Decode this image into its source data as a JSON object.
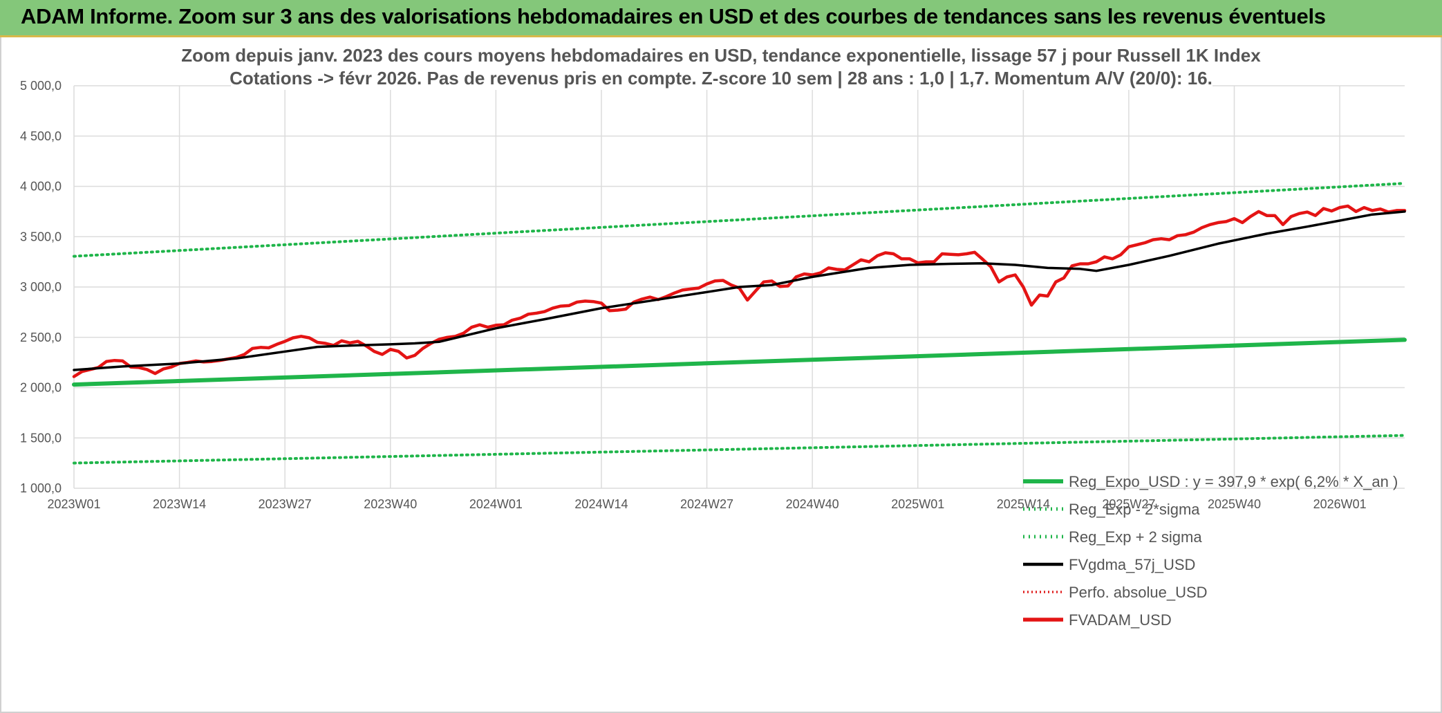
{
  "banner": {
    "title": "ADAM Informe. Zoom sur 3 ans des valorisations hebdomadaires en USD et des courbes de tendances sans les revenus éventuels"
  },
  "colors": {
    "banner_bg": "#84c77a",
    "trend": "#1fb54a",
    "sigma": "#1fb54a",
    "smooth": "#000000",
    "absolute": "#e02020",
    "adam": "#e41414",
    "grid": "#dcdcdc"
  },
  "chart_data": {
    "type": "line",
    "title_lines": [
      "Zoom depuis janv. 2023 des cours moyens hebdomadaires en USD, tendance exponentielle, lissage 57 j pour Russell 1K Index",
      "Cotations -> févr 2026. Pas de revenus pris en compte. Z-score 10 sem | 28 ans : 1,0 | 1,7. Momentum A/V (20/0): 16."
    ],
    "x_tick_labels": [
      "2023W01",
      "2023W14",
      "2023W27",
      "2023W40",
      "2024W01",
      "2024W14",
      "2024W27",
      "2024W40",
      "2025W01",
      "2025W14",
      "2025W27",
      "2025W40",
      "2026W01"
    ],
    "y_tick_labels": [
      "1 000,0",
      "1 500,0",
      "2 000,0",
      "2 500,0",
      "3 000,0",
      "3 500,0",
      "4 000,0",
      "4 500,0",
      "5 000,0"
    ],
    "ylim": [
      1000,
      5000
    ],
    "y_step": 500,
    "x_start_week_index": 0,
    "x_end_week_index": 164,
    "week_tick_step": 13,
    "grid": true,
    "legend_position": "bottom-right",
    "series": [
      {
        "name": "Reg_Expo_USD : y = 397,9 * exp( 6,2% *  X_an )",
        "style": "solid-thick",
        "points": [
          [
            0,
            2030
          ],
          [
            164,
            2475
          ]
        ]
      },
      {
        "name": "Reg_Exp - 2*sigma",
        "style": "dotted",
        "points": [
          [
            0,
            1250
          ],
          [
            164,
            1525
          ]
        ]
      },
      {
        "name": "Reg_Exp + 2 sigma",
        "style": "dotted",
        "points": [
          [
            0,
            3305
          ],
          [
            164,
            4030
          ]
        ]
      },
      {
        "name": "FVgdma_57j_USD",
        "style": "solid",
        "points": [
          [
            0,
            2175
          ],
          [
            6,
            2210
          ],
          [
            13,
            2240
          ],
          [
            20,
            2290
          ],
          [
            27,
            2370
          ],
          [
            30,
            2405
          ],
          [
            33,
            2415
          ],
          [
            39,
            2430
          ],
          [
            42,
            2440
          ],
          [
            45,
            2455
          ],
          [
            52,
            2590
          ],
          [
            58,
            2680
          ],
          [
            65,
            2790
          ],
          [
            70,
            2850
          ],
          [
            78,
            2950
          ],
          [
            82,
            3000
          ],
          [
            86,
            3020
          ],
          [
            91,
            3100
          ],
          [
            98,
            3190
          ],
          [
            103,
            3220
          ],
          [
            108,
            3230
          ],
          [
            112,
            3235
          ],
          [
            116,
            3220
          ],
          [
            120,
            3190
          ],
          [
            124,
            3180
          ],
          [
            126,
            3160
          ],
          [
            130,
            3220
          ],
          [
            135,
            3310
          ],
          [
            141,
            3430
          ],
          [
            147,
            3530
          ],
          [
            152,
            3600
          ],
          [
            156,
            3660
          ],
          [
            160,
            3720
          ],
          [
            164,
            3750
          ]
        ]
      },
      {
        "name": "Perfo. absolue_USD",
        "style": "dotted-red",
        "points": []
      },
      {
        "name": "FVADAM_USD",
        "style": "solid-thick",
        "points": [
          [
            0,
            2110
          ],
          [
            1,
            2160
          ],
          [
            2,
            2180
          ],
          [
            3,
            2200
          ],
          [
            4,
            2260
          ],
          [
            5,
            2270
          ],
          [
            6,
            2265
          ],
          [
            7,
            2205
          ],
          [
            8,
            2200
          ],
          [
            9,
            2180
          ],
          [
            10,
            2140
          ],
          [
            11,
            2185
          ],
          [
            12,
            2205
          ],
          [
            13,
            2240
          ],
          [
            14,
            2250
          ],
          [
            15,
            2265
          ],
          [
            16,
            2255
          ],
          [
            17,
            2260
          ],
          [
            18,
            2270
          ],
          [
            19,
            2285
          ],
          [
            20,
            2300
          ],
          [
            21,
            2330
          ],
          [
            22,
            2390
          ],
          [
            23,
            2400
          ],
          [
            24,
            2395
          ],
          [
            25,
            2430
          ],
          [
            26,
            2460
          ],
          [
            27,
            2495
          ],
          [
            28,
            2510
          ],
          [
            29,
            2495
          ],
          [
            30,
            2450
          ],
          [
            31,
            2440
          ],
          [
            32,
            2420
          ],
          [
            33,
            2465
          ],
          [
            34,
            2445
          ],
          [
            35,
            2460
          ],
          [
            36,
            2415
          ],
          [
            37,
            2360
          ],
          [
            38,
            2330
          ],
          [
            39,
            2380
          ],
          [
            40,
            2360
          ],
          [
            41,
            2295
          ],
          [
            42,
            2320
          ],
          [
            43,
            2390
          ],
          [
            44,
            2440
          ],
          [
            45,
            2480
          ],
          [
            46,
            2500
          ],
          [
            47,
            2510
          ],
          [
            48,
            2540
          ],
          [
            49,
            2600
          ],
          [
            50,
            2625
          ],
          [
            51,
            2600
          ],
          [
            52,
            2620
          ],
          [
            53,
            2625
          ],
          [
            54,
            2670
          ],
          [
            55,
            2690
          ],
          [
            56,
            2730
          ],
          [
            57,
            2740
          ],
          [
            58,
            2755
          ],
          [
            59,
            2790
          ],
          [
            60,
            2810
          ],
          [
            61,
            2815
          ],
          [
            62,
            2850
          ],
          [
            63,
            2860
          ],
          [
            64,
            2855
          ],
          [
            65,
            2840
          ],
          [
            66,
            2765
          ],
          [
            67,
            2770
          ],
          [
            68,
            2780
          ],
          [
            69,
            2850
          ],
          [
            70,
            2880
          ],
          [
            71,
            2900
          ],
          [
            72,
            2875
          ],
          [
            73,
            2905
          ],
          [
            74,
            2940
          ],
          [
            75,
            2970
          ],
          [
            76,
            2980
          ],
          [
            77,
            2990
          ],
          [
            78,
            3030
          ],
          [
            79,
            3060
          ],
          [
            80,
            3065
          ],
          [
            81,
            3020
          ],
          [
            82,
            2990
          ],
          [
            83,
            2870
          ],
          [
            84,
            2960
          ],
          [
            85,
            3050
          ],
          [
            86,
            3060
          ],
          [
            87,
            3005
          ],
          [
            88,
            3010
          ],
          [
            89,
            3100
          ],
          [
            90,
            3130
          ],
          [
            91,
            3120
          ],
          [
            92,
            3140
          ],
          [
            93,
            3190
          ],
          [
            94,
            3175
          ],
          [
            95,
            3170
          ],
          [
            96,
            3220
          ],
          [
            97,
            3270
          ],
          [
            98,
            3250
          ],
          [
            99,
            3310
          ],
          [
            100,
            3340
          ],
          [
            101,
            3330
          ],
          [
            102,
            3280
          ],
          [
            103,
            3280
          ],
          [
            104,
            3240
          ],
          [
            105,
            3250
          ],
          [
            106,
            3250
          ],
          [
            107,
            3330
          ],
          [
            108,
            3325
          ],
          [
            109,
            3320
          ],
          [
            110,
            3330
          ],
          [
            111,
            3345
          ],
          [
            112,
            3275
          ],
          [
            113,
            3200
          ],
          [
            114,
            3050
          ],
          [
            115,
            3100
          ],
          [
            116,
            3120
          ],
          [
            117,
            3000
          ],
          [
            118,
            2820
          ],
          [
            119,
            2920
          ],
          [
            120,
            2910
          ],
          [
            121,
            3050
          ],
          [
            122,
            3090
          ],
          [
            123,
            3210
          ],
          [
            124,
            3230
          ],
          [
            125,
            3230
          ],
          [
            126,
            3250
          ],
          [
            127,
            3300
          ],
          [
            128,
            3280
          ],
          [
            129,
            3320
          ],
          [
            130,
            3400
          ],
          [
            131,
            3420
          ],
          [
            132,
            3440
          ],
          [
            133,
            3470
          ],
          [
            134,
            3480
          ],
          [
            135,
            3470
          ],
          [
            136,
            3510
          ],
          [
            137,
            3520
          ],
          [
            138,
            3545
          ],
          [
            139,
            3590
          ],
          [
            140,
            3620
          ],
          [
            141,
            3640
          ],
          [
            142,
            3650
          ],
          [
            143,
            3680
          ],
          [
            144,
            3640
          ],
          [
            145,
            3700
          ],
          [
            146,
            3750
          ],
          [
            147,
            3710
          ],
          [
            148,
            3710
          ],
          [
            149,
            3620
          ],
          [
            150,
            3700
          ],
          [
            151,
            3730
          ],
          [
            152,
            3745
          ],
          [
            153,
            3710
          ],
          [
            154,
            3780
          ],
          [
            155,
            3755
          ],
          [
            156,
            3790
          ],
          [
            157,
            3805
          ],
          [
            158,
            3750
          ],
          [
            159,
            3790
          ],
          [
            160,
            3760
          ],
          [
            161,
            3775
          ],
          [
            162,
            3745
          ],
          [
            163,
            3760
          ],
          [
            164,
            3760
          ]
        ]
      }
    ]
  }
}
